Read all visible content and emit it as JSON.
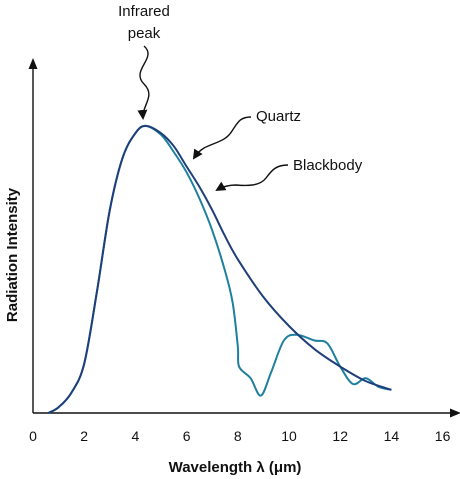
{
  "chart_data": {
    "type": "line",
    "title": "",
    "xlabel": "Wavelength λ (μm)",
    "ylabel": "Radiation Intensity",
    "xlim": [
      0,
      16
    ],
    "ylim": [
      0,
      1
    ],
    "x_ticks": [
      "0",
      "2",
      "4",
      "6",
      "8",
      "10",
      "12",
      "14",
      "16"
    ],
    "y_ticks": [],
    "grid": false,
    "legend": "none",
    "series": [
      {
        "name": "Blackbody",
        "color": "#1f3f7a",
        "x": [
          0.6,
          1.0,
          1.5,
          2.0,
          2.5,
          3.0,
          3.5,
          4.0,
          4.4,
          5.0,
          5.5,
          6.0,
          6.5,
          7.0,
          7.5,
          8.0,
          9.0,
          10.0,
          11.0,
          12.0,
          13.0,
          14.0
        ],
        "y": [
          0.0,
          0.02,
          0.07,
          0.17,
          0.42,
          0.7,
          0.88,
          0.965,
          0.99,
          0.965,
          0.92,
          0.85,
          0.78,
          0.7,
          0.61,
          0.53,
          0.4,
          0.3,
          0.22,
          0.16,
          0.11,
          0.08
        ]
      },
      {
        "name": "Quartz",
        "color": "#1e7f9e",
        "x": [
          0.6,
          1.0,
          1.5,
          2.0,
          2.5,
          3.0,
          3.5,
          4.0,
          4.4,
          5.0,
          5.5,
          6.0,
          6.5,
          7.0,
          7.5,
          7.8,
          8.0,
          8.05,
          8.5,
          8.9,
          9.3,
          9.8,
          10.3,
          11.0,
          11.5,
          12.0,
          12.5,
          13.0,
          13.5,
          14.0
        ],
        "y": [
          0.0,
          0.02,
          0.07,
          0.17,
          0.42,
          0.7,
          0.88,
          0.965,
          0.99,
          0.96,
          0.9,
          0.83,
          0.74,
          0.63,
          0.49,
          0.38,
          0.23,
          0.16,
          0.12,
          0.06,
          0.14,
          0.25,
          0.27,
          0.25,
          0.24,
          0.16,
          0.1,
          0.12,
          0.09,
          0.08
        ]
      }
    ],
    "annotations": [
      {
        "text": [
          "Infrared",
          "peak"
        ],
        "points_to": {
          "x": 4.3,
          "y": 0.99
        }
      },
      {
        "text": [
          "Quartz"
        ],
        "points_to": {
          "x": 6.1,
          "y": 0.83
        }
      },
      {
        "text": [
          "Blackbody"
        ],
        "points_to": {
          "x": 7.2,
          "y": 0.68
        }
      }
    ]
  }
}
